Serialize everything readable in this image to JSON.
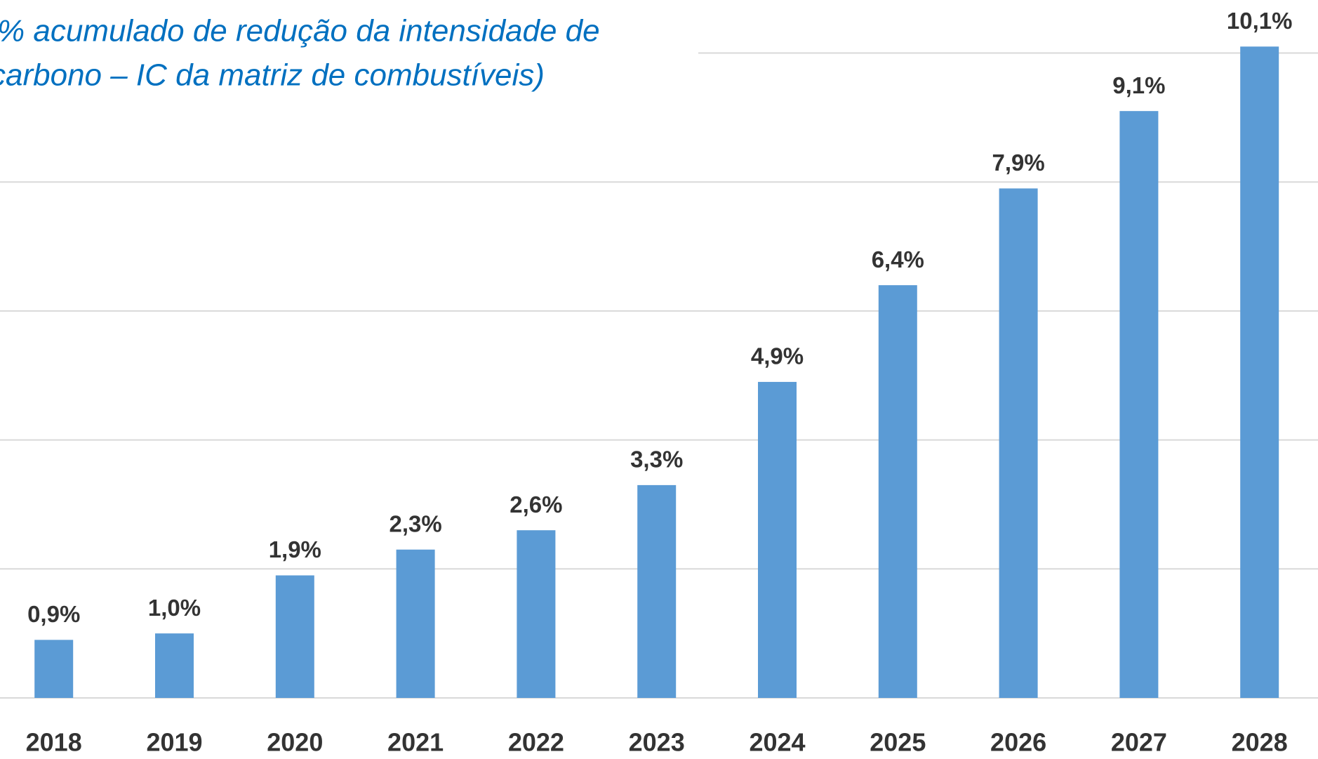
{
  "chart_data": {
    "type": "bar",
    "title": [
      "% acumulado de redução da intensidade de",
      "carbono – IC da matriz de combustíveis)"
    ],
    "categories": [
      "2018",
      "2019",
      "2020",
      "2021",
      "2022",
      "2023",
      "2024",
      "2025",
      "2026",
      "2027",
      "2028"
    ],
    "values": [
      0.9,
      1.0,
      1.9,
      2.3,
      2.6,
      3.3,
      4.9,
      6.4,
      7.9,
      9.1,
      10.1
    ],
    "value_labels": [
      "0,9%",
      "1,0%",
      "1,9%",
      "2,3%",
      "2,6%",
      "3,3%",
      "4,9%",
      "6,4%",
      "7,9%",
      "9,1%",
      "10,1%"
    ],
    "color": "#5b9bd5",
    "ylim": [
      0,
      10
    ],
    "yticks": [
      0,
      2,
      4,
      6,
      8,
      10
    ],
    "grid": true
  }
}
